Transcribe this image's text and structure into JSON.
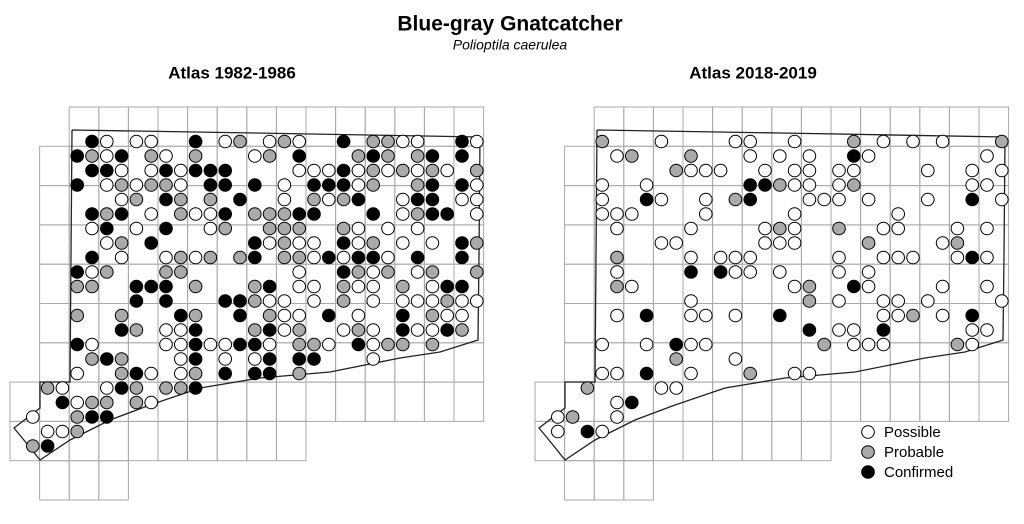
{
  "header": {
    "title": "Blue-gray Gnatcatcher",
    "subtitle": "Polioptila caerulea"
  },
  "maps": [
    {
      "title": "Atlas 1982-1986"
    },
    {
      "title": "Atlas 2018-2019"
    }
  ],
  "legend": [
    "Possible",
    "Probable",
    "Confirmed"
  ]
}
